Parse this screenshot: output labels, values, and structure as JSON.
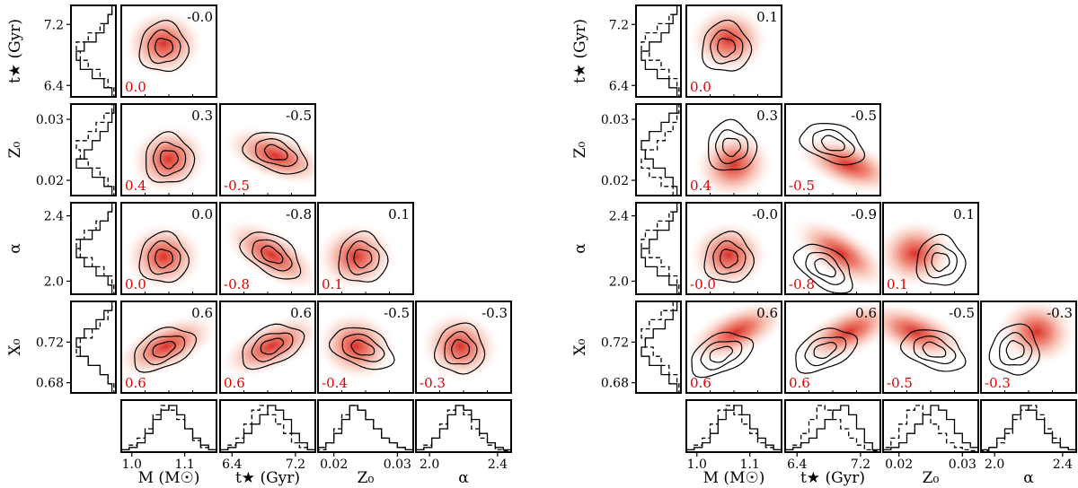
{
  "chart_data": [
    {
      "type": "corner",
      "name": "left",
      "parameters": [
        {
          "key": "M",
          "label": "M (M☉)",
          "range": [
            0.98,
            1.16
          ],
          "ticks": [
            1.0,
            1.1
          ],
          "tick_labels": [
            "1.0",
            "1.1"
          ]
        },
        {
          "key": "t",
          "label": "t★ (Gyr)",
          "range": [
            6.25,
            7.45
          ],
          "ticks": [
            6.4,
            7.2
          ],
          "tick_labels": [
            "6.4",
            "7.2"
          ]
        },
        {
          "key": "Z0",
          "label": "Z₀",
          "range": [
            0.0175,
            0.0325
          ],
          "ticks": [
            0.02,
            0.03
          ],
          "tick_labels": [
            "0.02",
            "0.03"
          ]
        },
        {
          "key": "alpha",
          "label": "α",
          "range": [
            1.92,
            2.48
          ],
          "ticks": [
            2.0,
            2.4
          ],
          "tick_labels": [
            "2.0",
            "2.4"
          ]
        },
        {
          "key": "X0",
          "label": "X₀",
          "range": [
            0.67,
            0.76
          ],
          "ticks": [
            0.68,
            0.72
          ],
          "tick_labels": [
            "0.68",
            "0.72"
          ]
        }
      ],
      "panels": [
        {
          "x": "M",
          "y": "t",
          "corr_contour": "-0.0",
          "corr_density": "0.0",
          "contour_center": [
            1.06,
            6.9
          ],
          "density_center": [
            1.06,
            6.95
          ]
        },
        {
          "x": "M",
          "y": "Z0",
          "corr_contour": "0.3",
          "corr_density": "0.4",
          "contour_center": [
            1.07,
            0.0235
          ],
          "density_center": [
            1.07,
            0.0235
          ]
        },
        {
          "x": "t",
          "y": "Z0",
          "corr_contour": "-0.5",
          "corr_density": "-0.5",
          "contour_center": [
            6.95,
            0.0245
          ],
          "density_center": [
            6.95,
            0.024
          ]
        },
        {
          "x": "M",
          "y": "alpha",
          "corr_contour": "0.0",
          "corr_density": "0.0",
          "contour_center": [
            1.06,
            2.14
          ],
          "density_center": [
            1.06,
            2.15
          ]
        },
        {
          "x": "t",
          "y": "alpha",
          "corr_contour": "-0.8",
          "corr_density": "-0.8",
          "contour_center": [
            6.9,
            2.16
          ],
          "density_center": [
            6.9,
            2.16
          ]
        },
        {
          "x": "Z0",
          "y": "alpha",
          "corr_contour": "0.1",
          "corr_density": "0.1",
          "contour_center": [
            0.0245,
            2.14
          ],
          "density_center": [
            0.0235,
            2.15
          ]
        },
        {
          "x": "M",
          "y": "X0",
          "corr_contour": "0.6",
          "corr_density": "0.6",
          "contour_center": [
            1.06,
            0.713
          ],
          "density_center": [
            1.065,
            0.716
          ]
        },
        {
          "x": "t",
          "y": "X0",
          "corr_contour": "0.6",
          "corr_density": "0.6",
          "contour_center": [
            6.9,
            0.716
          ],
          "density_center": [
            6.9,
            0.716
          ]
        },
        {
          "x": "Z0",
          "y": "X0",
          "corr_contour": "-0.5",
          "corr_density": "-0.4",
          "contour_center": [
            0.0245,
            0.714
          ],
          "density_center": [
            0.0235,
            0.716
          ]
        },
        {
          "x": "alpha",
          "y": "X0",
          "corr_contour": "-0.3",
          "corr_density": "-0.3",
          "contour_center": [
            2.18,
            0.713
          ],
          "density_center": [
            2.18,
            0.716
          ]
        }
      ],
      "marginals": {
        "M": {
          "solid": [
            0.5,
            1,
            2,
            4,
            7,
            9,
            10,
            8,
            5,
            3,
            1.5,
            0.5
          ],
          "dashed": [
            0.5,
            1.5,
            3,
            5,
            8,
            10,
            9,
            7,
            5,
            2.5,
            1,
            0.5
          ]
        },
        "t": {
          "solid": [
            0.5,
            1,
            2,
            4,
            6,
            8,
            10,
            9,
            7,
            4,
            2,
            0.5
          ],
          "dashed": [
            0.5,
            1.5,
            3,
            6,
            9,
            10,
            8,
            6,
            4,
            2,
            1,
            0.5
          ]
        },
        "Z0": {
          "solid": [
            1,
            2,
            4,
            7,
            10,
            9,
            7,
            5,
            3,
            2,
            1,
            0.5
          ],
          "dashed": [
            0.5,
            2,
            5,
            8,
            10,
            9,
            7,
            5,
            3,
            2,
            1,
            0.5
          ]
        },
        "alpha": {
          "solid": [
            0.5,
            1,
            3,
            5,
            8,
            10,
            9,
            7,
            4,
            2,
            1,
            0.5
          ],
          "dashed": [
            0.5,
            1.5,
            3,
            6,
            9,
            10,
            8,
            5,
            3,
            1.5,
            0.5,
            0.3
          ]
        }
      },
      "y_marginals": {
        "t": {
          "solid": [
            1,
            3,
            6,
            9,
            10,
            8,
            5,
            3,
            2,
            1
          ],
          "dashed": [
            0.5,
            2,
            4,
            7,
            9,
            10,
            7,
            4,
            2,
            1
          ]
        },
        "Z0": {
          "solid": [
            1,
            3,
            6,
            10,
            8,
            6,
            4,
            2,
            1,
            0.5
          ],
          "dashed": [
            0.5,
            2,
            4,
            7,
            9,
            10,
            7,
            5,
            3,
            1
          ]
        },
        "alpha": {
          "solid": [
            1,
            2,
            5,
            8,
            10,
            9,
            6,
            4,
            2,
            1
          ],
          "dashed": [
            0.5,
            1,
            3,
            6,
            9,
            10,
            8,
            5,
            2,
            1
          ]
        },
        "X0": {
          "solid": [
            1,
            2,
            4,
            7,
            9,
            10,
            8,
            5,
            3,
            1
          ],
          "dashed": [
            0.5,
            2,
            4,
            7,
            10,
            9,
            6,
            4,
            2,
            1
          ]
        }
      }
    },
    {
      "type": "corner",
      "name": "right",
      "parameters": [
        {
          "key": "M",
          "label": "M (M☉)",
          "range": [
            0.98,
            1.16
          ],
          "ticks": [
            1.0,
            1.1
          ],
          "tick_labels": [
            "1.0",
            "1.1"
          ]
        },
        {
          "key": "t",
          "label": "t★ (Gyr)",
          "range": [
            6.25,
            7.45
          ],
          "ticks": [
            6.4,
            7.2
          ],
          "tick_labels": [
            "6.4",
            "7.2"
          ]
        },
        {
          "key": "Z0",
          "label": "Z₀",
          "range": [
            0.0175,
            0.0325
          ],
          "ticks": [
            0.02,
            0.03
          ],
          "tick_labels": [
            "0.02",
            "0.03"
          ]
        },
        {
          "key": "alpha",
          "label": "α",
          "range": [
            1.92,
            2.48
          ],
          "ticks": [
            2.0,
            2.4
          ],
          "tick_labels": [
            "2.0",
            "2.4"
          ]
        },
        {
          "key": "X0",
          "label": "X₀",
          "range": [
            0.67,
            0.76
          ],
          "ticks": [
            0.68,
            0.72
          ],
          "tick_labels": [
            "0.68",
            "0.72"
          ]
        }
      ],
      "panels": [
        {
          "x": "M",
          "y": "t",
          "corr_contour": "0.1",
          "corr_density": "0.0",
          "contour_center": [
            1.055,
            6.9
          ],
          "density_center": [
            1.06,
            7.0
          ]
        },
        {
          "x": "M",
          "y": "Z0",
          "corr_contour": "0.3",
          "corr_density": "0.4",
          "contour_center": [
            1.065,
            0.0255
          ],
          "density_center": [
            1.07,
            0.0225
          ]
        },
        {
          "x": "t",
          "y": "Z0",
          "corr_contour": "-0.5",
          "corr_density": "-0.5",
          "contour_center": [
            6.85,
            0.026
          ],
          "density_center": [
            7.05,
            0.0225
          ]
        },
        {
          "x": "M",
          "y": "alpha",
          "corr_contour": "-0.0",
          "corr_density": "-0.0",
          "contour_center": [
            1.06,
            2.14
          ],
          "density_center": [
            1.06,
            2.16
          ]
        },
        {
          "x": "t",
          "y": "alpha",
          "corr_contour": "-0.9",
          "corr_density": "-0.8",
          "contour_center": [
            6.75,
            2.08
          ],
          "density_center": [
            6.95,
            2.17
          ]
        },
        {
          "x": "Z0",
          "y": "alpha",
          "corr_contour": "0.1",
          "corr_density": "0.1",
          "contour_center": [
            0.0265,
            2.12
          ],
          "density_center": [
            0.0225,
            2.17
          ]
        },
        {
          "x": "M",
          "y": "X0",
          "corr_contour": "0.6",
          "corr_density": "0.6",
          "contour_center": [
            1.045,
            0.708
          ],
          "density_center": [
            1.075,
            0.73
          ]
        },
        {
          "x": "t",
          "y": "X0",
          "corr_contour": "0.6",
          "corr_density": "0.6",
          "contour_center": [
            6.75,
            0.712
          ],
          "density_center": [
            7.05,
            0.73
          ]
        },
        {
          "x": "Z0",
          "y": "X0",
          "corr_contour": "-0.5",
          "corr_density": "-0.5",
          "contour_center": [
            0.0255,
            0.712
          ],
          "density_center": [
            0.0225,
            0.73
          ]
        },
        {
          "x": "alpha",
          "y": "X0",
          "corr_contour": "-0.3",
          "corr_density": "-0.3",
          "contour_center": [
            2.12,
            0.712
          ],
          "density_center": [
            2.25,
            0.73
          ]
        }
      ],
      "marginals": {
        "M": {
          "solid": [
            0.5,
            1,
            2,
            4,
            7,
            9,
            10,
            8,
            5,
            3,
            1.5,
            0.5
          ],
          "dashed": [
            0.5,
            1.5,
            3,
            6,
            9,
            10,
            8,
            6,
            4,
            2,
            1,
            0.5
          ]
        },
        "t": {
          "solid": [
            0.5,
            1,
            2,
            3,
            5,
            7,
            9,
            10,
            8,
            5,
            2,
            0.5
          ],
          "dashed": [
            0.5,
            1.5,
            4,
            7,
            10,
            9,
            7,
            5,
            3,
            1.5,
            0.5,
            0.3
          ]
        },
        "Z0": {
          "solid": [
            0.5,
            1,
            2,
            4,
            6,
            8,
            10,
            9,
            7,
            4,
            2,
            1
          ],
          "dashed": [
            1,
            3,
            6,
            9,
            10,
            8,
            6,
            4,
            2,
            1,
            0.5,
            0.3
          ]
        },
        "alpha": {
          "solid": [
            0.5,
            1,
            3,
            5,
            8,
            10,
            9,
            7,
            4,
            2,
            1,
            0.5
          ],
          "dashed": [
            0.3,
            1,
            2,
            4,
            7,
            9,
            10,
            8,
            5,
            3,
            1,
            0.5
          ]
        }
      },
      "y_marginals": {
        "t": {
          "solid": [
            1,
            3,
            6,
            9,
            10,
            8,
            5,
            3,
            2,
            1
          ],
          "dashed": [
            0.5,
            1,
            3,
            5,
            8,
            10,
            9,
            6,
            3,
            1
          ]
        },
        "Z0": {
          "solid": [
            1,
            2,
            4,
            7,
            9,
            10,
            8,
            5,
            3,
            1
          ],
          "dashed": [
            2,
            5,
            8,
            10,
            9,
            6,
            4,
            2,
            1,
            0.5
          ]
        },
        "alpha": {
          "solid": [
            1,
            3,
            6,
            9,
            10,
            8,
            6,
            3,
            2,
            1
          ],
          "dashed": [
            0.5,
            1,
            3,
            5,
            8,
            10,
            9,
            6,
            3,
            1
          ]
        },
        "X0": {
          "solid": [
            1,
            3,
            5,
            8,
            10,
            9,
            7,
            4,
            2,
            1
          ],
          "dashed": [
            0.5,
            1,
            3,
            5,
            7,
            9,
            10,
            8,
            5,
            2
          ]
        }
      }
    }
  ]
}
